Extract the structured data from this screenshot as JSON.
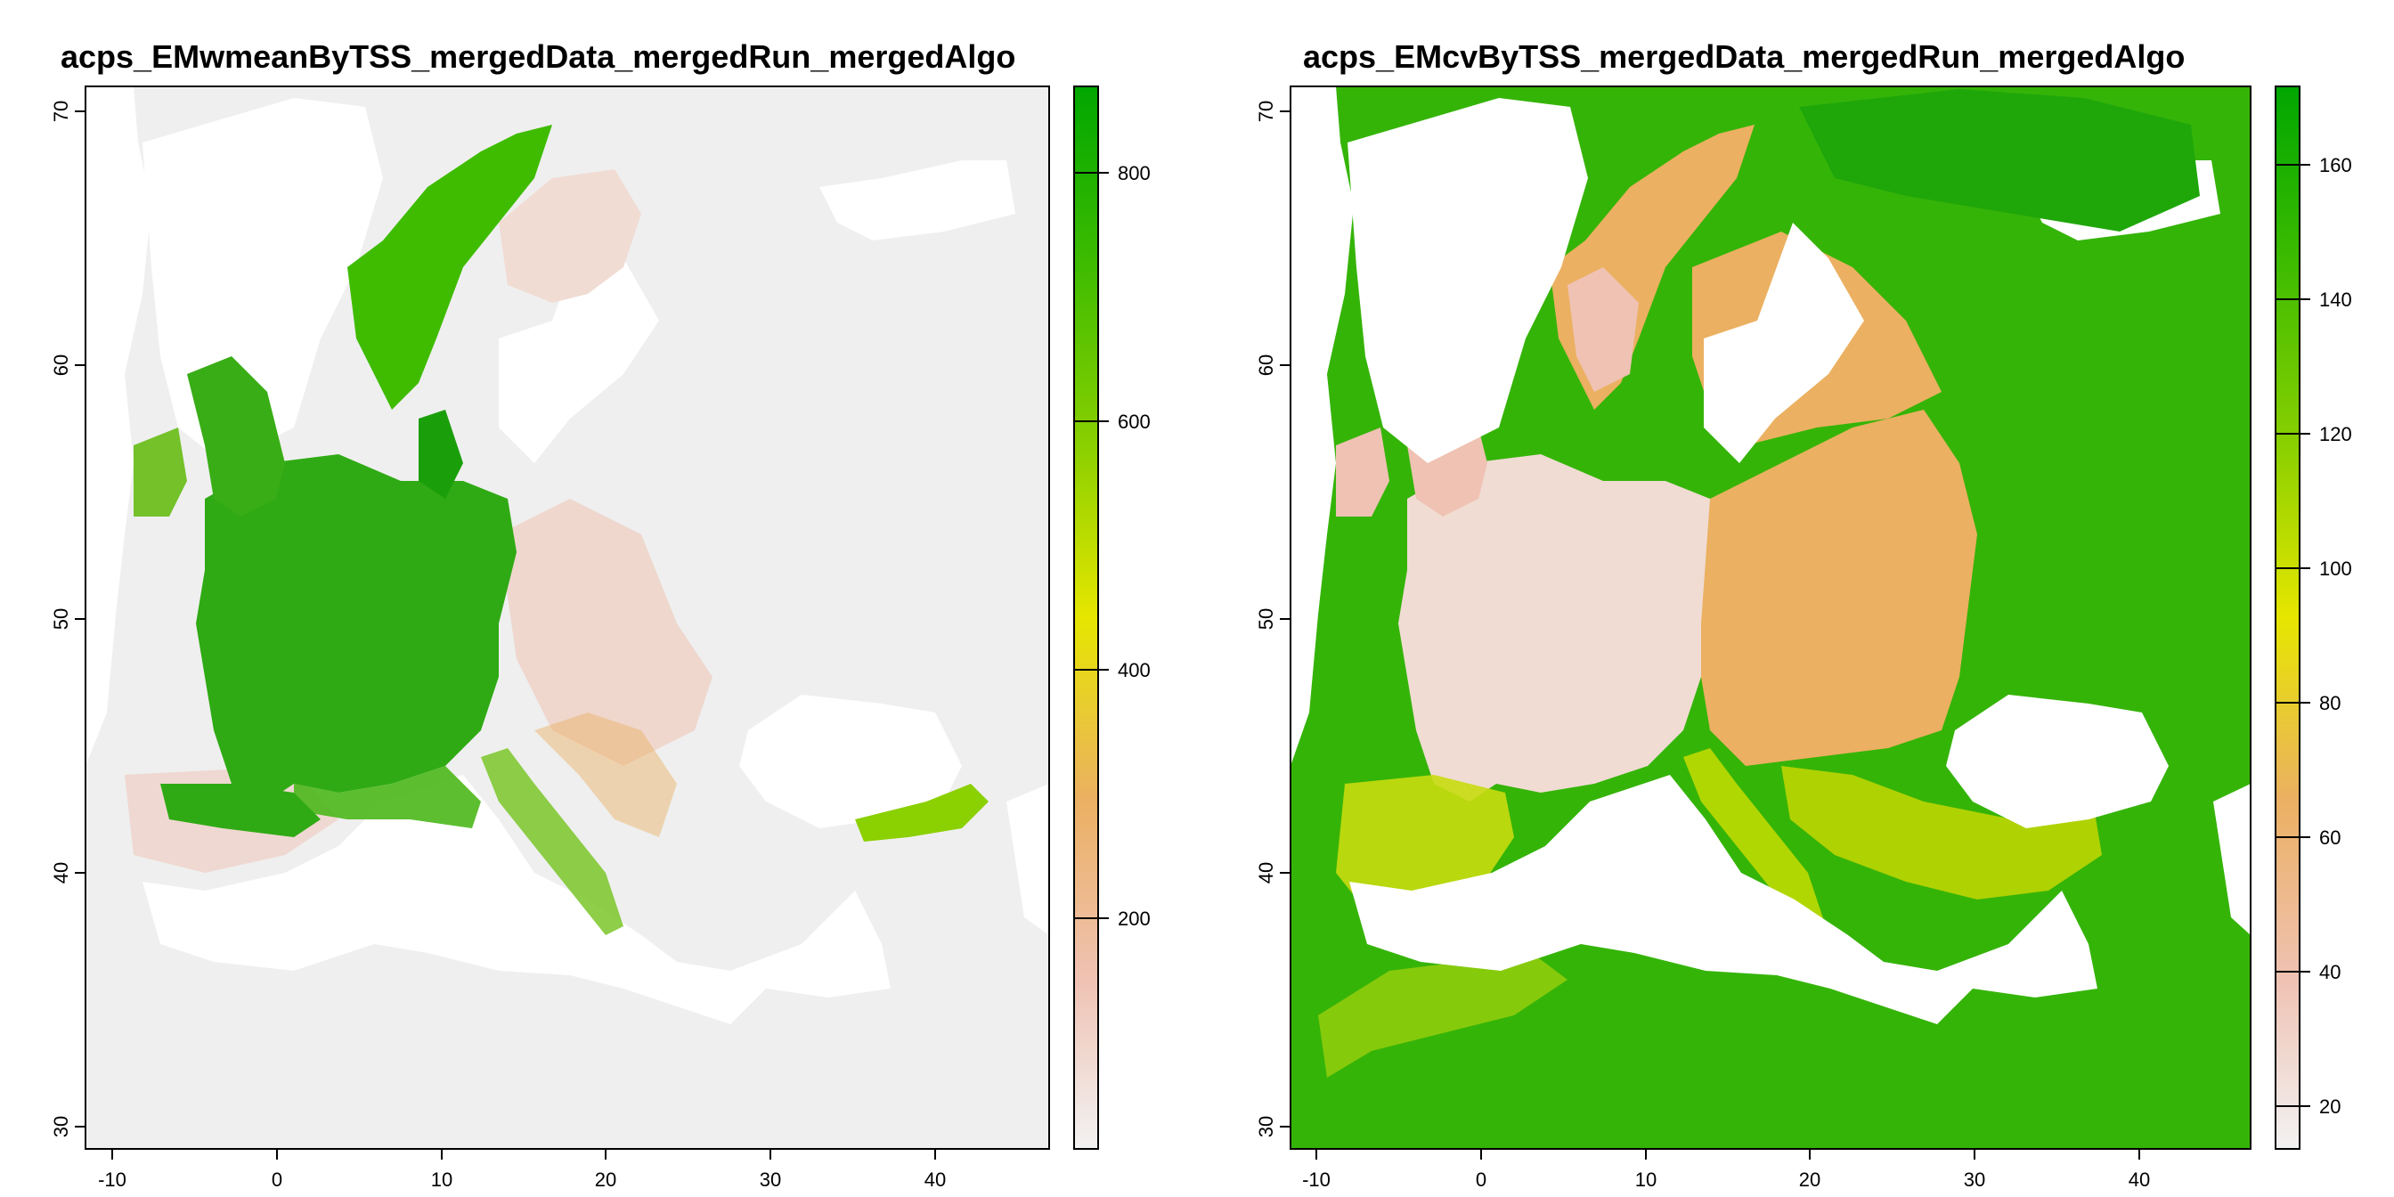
{
  "panels": [
    {
      "title": "acps_EMwmeanByTSS_mergedData_mergedRun_mergedAlgo",
      "x_ticks": [
        "-10",
        "0",
        "10",
        "20",
        "30",
        "40"
      ],
      "y_ticks": [
        "30",
        "40",
        "50",
        "60",
        "70"
      ],
      "colorbar_ticks": [
        "200",
        "400",
        "600",
        "800"
      ],
      "colorbar_range": [
        0,
        870
      ],
      "palette": [
        "#f2f2f2",
        "#efc2b3",
        "#ebb061",
        "#e6e600",
        "#8bd000",
        "#3fbc00",
        "#00a600"
      ]
    },
    {
      "title": "acps_EMcvByTSS_mergedData_mergedRun_mergedAlgo",
      "x_ticks": [
        "-10",
        "0",
        "10",
        "20",
        "30",
        "40"
      ],
      "y_ticks": [
        "30",
        "40",
        "50",
        "60",
        "70"
      ],
      "colorbar_ticks": [
        "20",
        "40",
        "60",
        "80",
        "100",
        "120",
        "140",
        "160"
      ],
      "colorbar_range": [
        13,
        171
      ],
      "palette": [
        "#f2f2f2",
        "#efc2b3",
        "#ebb061",
        "#e6e600",
        "#8bd000",
        "#3fbc00",
        "#00a600"
      ]
    }
  ]
}
